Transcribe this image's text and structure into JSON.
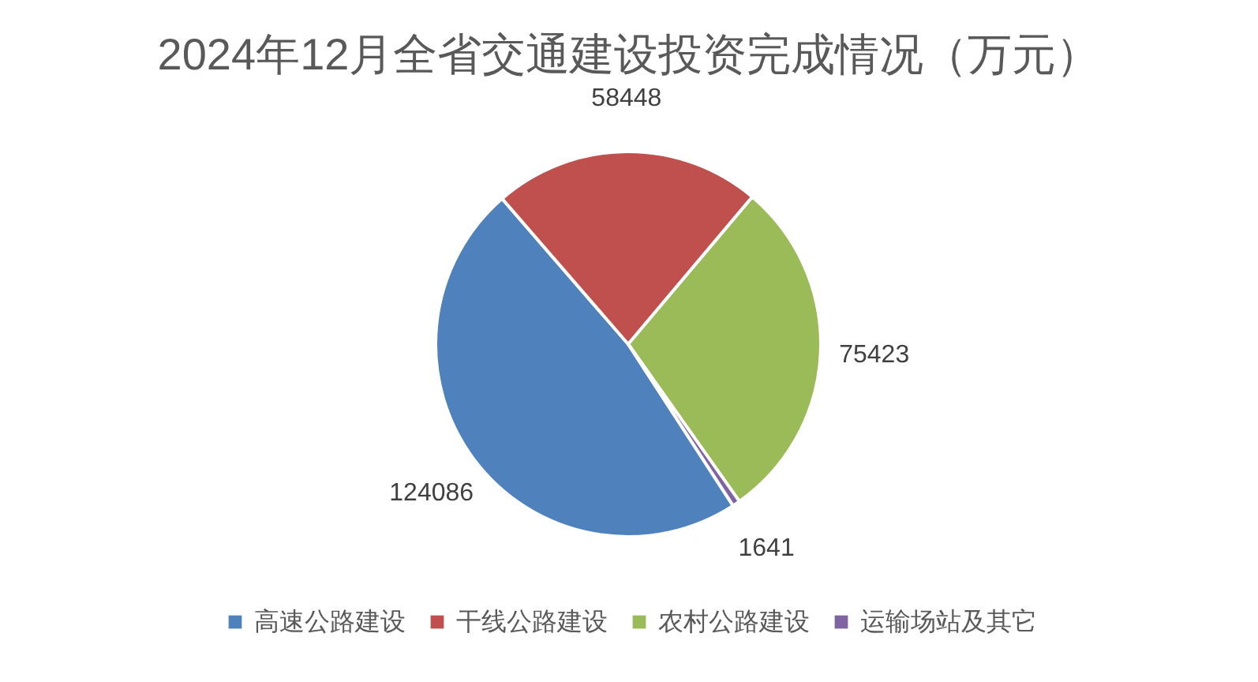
{
  "chart_data": {
    "type": "pie",
    "title": "2024年12月全省交通建设投资完成情况（万元）",
    "categories": [
      "高速公路建设",
      "干线公路建设",
      "农村公路建设",
      "运输场站及其它"
    ],
    "values": [
      124086,
      58448,
      75423,
      1641
    ],
    "colors": [
      "#4f81bd",
      "#c0504d",
      "#9bbb59",
      "#8064a2"
    ],
    "data_labels": true,
    "legend": "bottom"
  }
}
